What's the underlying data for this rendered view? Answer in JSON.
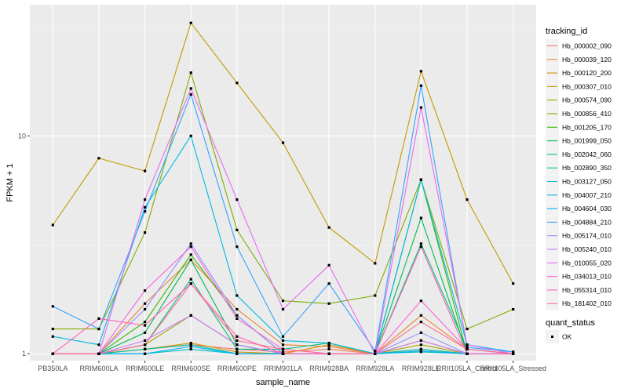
{
  "chart_data": {
    "type": "line",
    "xlabel": "sample_name",
    "ylabel": "FPKM + 1",
    "y_scale": "log",
    "y_ticks": [
      1,
      10
    ],
    "ylim": [
      0.93,
      40
    ],
    "grid": true,
    "legend_position": "right",
    "categories": [
      "PB350LA",
      "RRIM600LA",
      "RRIM600LE",
      "RRIM600SE",
      "RRIM600PE",
      "RRIM901LA",
      "RRIM928BA",
      "RRIM928LA",
      "RRIM928LE",
      "RRII105LA_Control",
      "RRII105LA_Stressed"
    ],
    "tick_labels": [
      "PB350LA",
      "RRIM600LA",
      "RRIM600LE",
      "RRIM600SE",
      "RRIM600PE",
      "RRIM901LA",
      "RRIM928BA",
      "RRIM928LA",
      "RRIM928LE",
      "RRII105LA_Control",
      "RRII105LA_Stressed"
    ],
    "legend_title": "tracking_id",
    "series": [
      {
        "name": "Hb_000002_090",
        "color": "#F8766D",
        "values": [
          1.0,
          1.0,
          1.05,
          1.1,
          1.05,
          1.02,
          1.05,
          1.0,
          1.05,
          1.0,
          1.0
        ]
      },
      {
        "name": "Hb_000039_120",
        "color": "#EA8331",
        "values": [
          1.0,
          1.0,
          1.7,
          2.7,
          1.6,
          1.1,
          1.08,
          1.0,
          1.5,
          1.05,
          1.0
        ]
      },
      {
        "name": "Hb_000120_200",
        "color": "#D89000",
        "values": [
          1.0,
          1.0,
          1.05,
          1.12,
          1.02,
          1.0,
          1.1,
          1.0,
          1.15,
          1.0,
          1.0
        ]
      },
      {
        "name": "Hb_000307_010",
        "color": "#C09B00",
        "values": [
          3.9,
          7.9,
          6.9,
          33.0,
          17.5,
          9.3,
          3.8,
          2.6,
          19.8,
          5.1,
          2.1
        ]
      },
      {
        "name": "Hb_000574_090",
        "color": "#A3A500",
        "values": [
          1.0,
          1.0,
          1.1,
          1.5,
          1.1,
          1.0,
          1.0,
          1.0,
          1.1,
          1.0,
          1.0
        ]
      },
      {
        "name": "Hb_000856_410",
        "color": "#7CAE00",
        "values": [
          1.3,
          1.3,
          3.6,
          19.5,
          3.7,
          1.75,
          1.7,
          1.85,
          6.3,
          1.3,
          1.6
        ]
      },
      {
        "name": "Hb_001205_170",
        "color": "#39B600",
        "values": [
          1.0,
          1.0,
          1.4,
          2.85,
          1.5,
          1.0,
          1.0,
          1.0,
          6.3,
          1.0,
          1.0
        ]
      },
      {
        "name": "Hb_001999_050",
        "color": "#00BB4E",
        "values": [
          1.0,
          1.0,
          1.25,
          2.7,
          1.1,
          1.0,
          1.0,
          1.0,
          4.2,
          1.0,
          1.0
        ]
      },
      {
        "name": "Hb_002042_060",
        "color": "#00BF7D",
        "values": [
          1.0,
          1.0,
          1.1,
          2.2,
          1.05,
          1.05,
          1.12,
          1.0,
          3.2,
          1.05,
          1.0
        ]
      },
      {
        "name": "Hb_002890_350",
        "color": "#00C1A3",
        "values": [
          1.0,
          1.0,
          1.05,
          1.1,
          1.0,
          1.0,
          1.0,
          1.0,
          1.05,
          1.0,
          1.0
        ]
      },
      {
        "name": "Hb_003127_050",
        "color": "#00BFC4",
        "values": [
          1.0,
          1.0,
          1.0,
          1.05,
          1.0,
          1.0,
          1.0,
          1.0,
          1.02,
          1.0,
          1.0
        ]
      },
      {
        "name": "Hb_004007_210",
        "color": "#00BAE0",
        "values": [
          1.2,
          1.1,
          4.7,
          10.0,
          1.85,
          1.15,
          1.12,
          1.0,
          6.3,
          1.1,
          1.02
        ]
      },
      {
        "name": "Hb_004604_030",
        "color": "#00B0F6",
        "values": [
          1.0,
          1.0,
          1.0,
          1.08,
          1.0,
          1.0,
          1.0,
          1.0,
          1.03,
          1.0,
          1.0
        ]
      },
      {
        "name": "Hb_004884_210",
        "color": "#35A2FF",
        "values": [
          1.65,
          1.3,
          4.5,
          15.5,
          3.1,
          1.2,
          2.1,
          1.03,
          17.0,
          1.07,
          1.02
        ]
      },
      {
        "name": "Hb_005174_010",
        "color": "#9590FF",
        "values": [
          1.0,
          1.0,
          1.6,
          3.2,
          1.5,
          1.0,
          1.0,
          1.0,
          1.25,
          1.0,
          1.0
        ]
      },
      {
        "name": "Hb_005240_010",
        "color": "#C77CFF",
        "values": [
          1.0,
          1.0,
          1.15,
          1.5,
          1.1,
          1.0,
          1.0,
          1.0,
          1.15,
          1.0,
          1.0
        ]
      },
      {
        "name": "Hb_010055_020",
        "color": "#E76BF3",
        "values": [
          1.0,
          1.0,
          5.1,
          16.5,
          5.1,
          1.6,
          2.55,
          1.0,
          13.5,
          1.1,
          1.0
        ]
      },
      {
        "name": "Hb_034013_010",
        "color": "#FA62DB",
        "values": [
          1.0,
          1.0,
          1.95,
          3.1,
          1.45,
          1.05,
          1.0,
          1.0,
          1.75,
          1.05,
          1.0
        ]
      },
      {
        "name": "Hb_055314_010",
        "color": "#FF62BC",
        "values": [
          1.0,
          1.45,
          1.35,
          2.1,
          1.2,
          1.0,
          1.0,
          1.0,
          3.1,
          1.0,
          1.0
        ]
      },
      {
        "name": "Hb_181402_010",
        "color": "#FF6C91",
        "values": [
          1.0,
          1.0,
          1.1,
          2.1,
          1.15,
          1.05,
          1.0,
          1.0,
          1.4,
          1.05,
          1.0
        ]
      }
    ],
    "shape_legend": {
      "title": "quant_status",
      "items": [
        "OK"
      ]
    }
  }
}
